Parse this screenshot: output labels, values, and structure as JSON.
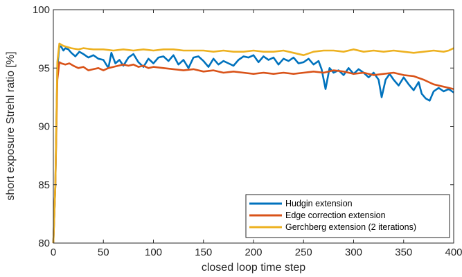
{
  "chart_data": {
    "type": "line",
    "title": "",
    "xlabel": "closed loop time step",
    "ylabel": "short exposure Strehl ratio [%]",
    "xlim": [
      0,
      400
    ],
    "ylim": [
      80,
      100
    ],
    "xticks": [
      0,
      50,
      100,
      150,
      200,
      250,
      300,
      350,
      400
    ],
    "yticks": [
      80,
      85,
      90,
      95,
      100
    ],
    "grid": false,
    "legend_position": "bottom-right",
    "series": [
      {
        "name": "Hudgin extension",
        "color": "#0072BD",
        "x": [
          0,
          2,
          4,
          6,
          8,
          10,
          12,
          15,
          18,
          22,
          26,
          30,
          35,
          40,
          45,
          50,
          55,
          58,
          62,
          66,
          70,
          75,
          80,
          85,
          90,
          95,
          100,
          105,
          110,
          115,
          120,
          125,
          130,
          135,
          140,
          145,
          150,
          155,
          160,
          165,
          170,
          175,
          180,
          185,
          190,
          195,
          200,
          205,
          210,
          215,
          220,
          225,
          230,
          235,
          240,
          245,
          250,
          255,
          260,
          265,
          268,
          272,
          276,
          280,
          285,
          290,
          295,
          300,
          305,
          310,
          315,
          320,
          325,
          328,
          332,
          336,
          340,
          345,
          350,
          355,
          360,
          365,
          368,
          372,
          376,
          380,
          385,
          390,
          395,
          400
        ],
        "y": [
          80.0,
          85.0,
          95.0,
          96.9,
          96.8,
          96.5,
          96.7,
          96.6,
          96.3,
          96.0,
          96.4,
          96.2,
          95.9,
          96.1,
          95.8,
          95.7,
          95.0,
          96.3,
          95.4,
          95.7,
          95.2,
          95.9,
          96.2,
          95.5,
          95.1,
          95.8,
          95.4,
          95.9,
          96.0,
          95.6,
          96.1,
          95.3,
          95.7,
          95.0,
          95.9,
          96.0,
          95.6,
          95.1,
          95.8,
          95.3,
          95.6,
          95.4,
          95.2,
          95.7,
          96.0,
          95.9,
          96.1,
          95.5,
          96.0,
          95.7,
          95.9,
          95.3,
          95.8,
          95.6,
          95.9,
          95.4,
          95.5,
          95.8,
          95.3,
          95.6,
          94.9,
          93.2,
          95.0,
          94.6,
          94.8,
          94.4,
          95.0,
          94.5,
          94.9,
          94.6,
          94.2,
          94.6,
          94.0,
          92.5,
          94.0,
          94.5,
          94.0,
          93.5,
          94.2,
          93.6,
          93.1,
          93.8,
          92.8,
          92.4,
          92.2,
          93.0,
          93.3,
          93.0,
          93.2,
          92.9
        ]
      },
      {
        "name": "Edge correction extension",
        "color": "#D95319",
        "x": [
          0,
          2,
          4,
          6,
          8,
          12,
          16,
          20,
          25,
          30,
          35,
          40,
          45,
          50,
          55,
          60,
          65,
          70,
          75,
          80,
          85,
          90,
          95,
          100,
          110,
          120,
          130,
          140,
          150,
          160,
          170,
          180,
          190,
          200,
          210,
          220,
          230,
          240,
          250,
          260,
          270,
          280,
          290,
          300,
          310,
          320,
          330,
          340,
          350,
          360,
          370,
          375,
          380,
          385,
          390,
          395,
          400
        ],
        "y": [
          80.0,
          85.0,
          94.0,
          95.5,
          95.4,
          95.3,
          95.4,
          95.2,
          95.0,
          95.1,
          94.8,
          94.9,
          95.0,
          94.8,
          95.0,
          95.1,
          95.2,
          95.3,
          95.2,
          95.3,
          95.1,
          95.2,
          95.0,
          95.1,
          95.0,
          94.9,
          94.8,
          94.9,
          94.7,
          94.8,
          94.6,
          94.7,
          94.6,
          94.5,
          94.6,
          94.5,
          94.6,
          94.5,
          94.6,
          94.7,
          94.6,
          94.8,
          94.7,
          94.5,
          94.6,
          94.4,
          94.5,
          94.6,
          94.4,
          94.3,
          94.0,
          93.8,
          93.6,
          93.5,
          93.4,
          93.3,
          93.2
        ]
      },
      {
        "name": "Gerchberg extension (2 iterations)",
        "color": "#EDB120",
        "x": [
          0,
          2,
          4,
          6,
          8,
          10,
          14,
          18,
          25,
          30,
          40,
          50,
          60,
          70,
          80,
          90,
          100,
          110,
          120,
          130,
          140,
          150,
          160,
          170,
          180,
          190,
          200,
          210,
          220,
          230,
          240,
          250,
          260,
          270,
          280,
          290,
          300,
          310,
          320,
          330,
          340,
          350,
          360,
          370,
          380,
          390,
          395,
          400
        ],
        "y": [
          80.0,
          85.0,
          95.5,
          97.1,
          97.0,
          96.9,
          96.8,
          96.7,
          96.6,
          96.7,
          96.6,
          96.6,
          96.5,
          96.6,
          96.5,
          96.6,
          96.5,
          96.6,
          96.6,
          96.5,
          96.5,
          96.5,
          96.4,
          96.5,
          96.4,
          96.4,
          96.5,
          96.4,
          96.4,
          96.5,
          96.3,
          96.1,
          96.4,
          96.5,
          96.5,
          96.4,
          96.6,
          96.4,
          96.5,
          96.4,
          96.5,
          96.4,
          96.3,
          96.4,
          96.5,
          96.4,
          96.5,
          96.7
        ]
      }
    ]
  }
}
